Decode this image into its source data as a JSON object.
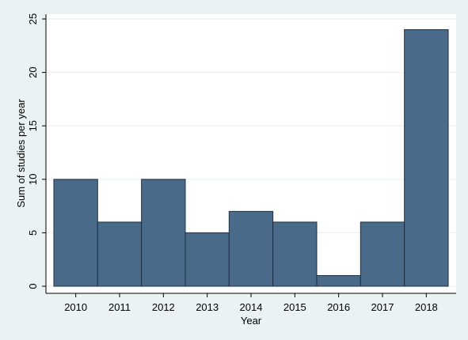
{
  "chart_data": {
    "type": "bar",
    "categories": [
      "2010",
      "2011",
      "2012",
      "2013",
      "2014",
      "2015",
      "2016",
      "2017",
      "2018"
    ],
    "values": [
      10,
      6,
      10,
      5,
      7,
      6,
      1,
      6,
      24
    ],
    "xlabel": "Year",
    "ylabel": "Sum of studies per year",
    "ylim": [
      0,
      25
    ],
    "yticks": [
      "0",
      "5",
      "10",
      "15",
      "20",
      "25"
    ],
    "grid": true,
    "colors": {
      "bar_fill": "#4a6a8a",
      "bar_stroke": "#1f2f3f",
      "plot_background": "#ffffff",
      "outer_background": "#eaf2f3",
      "grid": "#eaf2f3"
    }
  }
}
